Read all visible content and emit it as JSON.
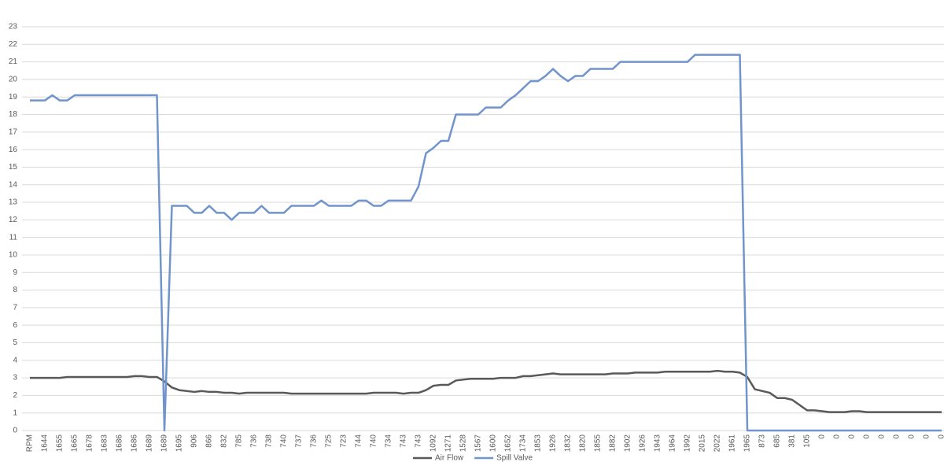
{
  "chart_data": {
    "type": "line",
    "categories": [
      "RPM",
      null,
      "1644",
      null,
      "1655",
      null,
      "1665",
      null,
      "1678",
      null,
      "1683",
      null,
      "1686",
      null,
      "1686",
      null,
      "1689",
      null,
      "1689",
      null,
      "1695",
      null,
      "906",
      null,
      "866",
      null,
      "832",
      null,
      "785",
      null,
      "736",
      null,
      "738",
      null,
      "740",
      null,
      "737",
      null,
      "736",
      null,
      "725",
      null,
      "723",
      null,
      "744",
      null,
      "740",
      null,
      "734",
      null,
      "743",
      null,
      "743",
      null,
      "1092",
      null,
      "1271",
      null,
      "1528",
      null,
      "1567",
      null,
      "1600",
      null,
      "1652",
      null,
      "1734",
      null,
      "1853",
      null,
      "1926",
      null,
      "1832",
      null,
      "1820",
      null,
      "1855",
      null,
      "1882",
      null,
      "1902",
      null,
      "1926",
      null,
      "1943",
      null,
      "1964",
      null,
      "1992",
      null,
      "2015",
      null,
      "2022",
      null,
      "1961",
      null,
      "1965",
      null,
      "873",
      null,
      "685",
      null,
      "381",
      null,
      "105",
      null,
      "0",
      null,
      "0",
      null,
      "0",
      null,
      "0",
      null,
      "0",
      null,
      "0",
      null,
      "0",
      null,
      "0",
      null,
      "0"
    ],
    "series": [
      {
        "name": "Air Flow",
        "color": "#595959",
        "values": [
          3.0,
          3.0,
          3.0,
          3.0,
          3.0,
          3.05,
          3.05,
          3.05,
          3.05,
          3.05,
          3.05,
          3.05,
          3.05,
          3.05,
          3.1,
          3.1,
          3.05,
          3.05,
          2.8,
          2.45,
          2.3,
          2.25,
          2.2,
          2.25,
          2.2,
          2.2,
          2.15,
          2.15,
          2.1,
          2.15,
          2.15,
          2.15,
          2.15,
          2.15,
          2.15,
          2.1,
          2.1,
          2.1,
          2.1,
          2.1,
          2.1,
          2.1,
          2.1,
          2.1,
          2.1,
          2.1,
          2.15,
          2.15,
          2.15,
          2.15,
          2.1,
          2.15,
          2.15,
          2.3,
          2.55,
          2.6,
          2.6,
          2.85,
          2.9,
          2.95,
          2.95,
          2.95,
          2.95,
          3.0,
          3.0,
          3.0,
          3.1,
          3.1,
          3.15,
          3.2,
          3.25,
          3.2,
          3.2,
          3.2,
          3.2,
          3.2,
          3.2,
          3.2,
          3.25,
          3.25,
          3.25,
          3.3,
          3.3,
          3.3,
          3.3,
          3.35,
          3.35,
          3.35,
          3.35,
          3.35,
          3.35,
          3.35,
          3.4,
          3.35,
          3.35,
          3.3,
          3.05,
          2.35,
          2.25,
          2.15,
          1.85,
          1.85,
          1.75,
          1.45,
          1.15,
          1.15,
          1.1,
          1.05,
          1.05,
          1.05,
          1.1,
          1.1,
          1.05,
          1.05,
          1.05,
          1.05,
          1.05,
          1.05,
          1.05,
          1.05,
          1.05,
          1.05,
          1.05
        ]
      },
      {
        "name": "Spill Valve",
        "color": "#7094cb",
        "values": [
          18.8,
          18.8,
          18.8,
          19.1,
          18.8,
          18.8,
          19.1,
          19.1,
          19.1,
          19.1,
          19.1,
          19.1,
          19.1,
          19.1,
          19.1,
          19.1,
          19.1,
          19.1,
          0,
          12.8,
          12.8,
          12.8,
          12.4,
          12.4,
          12.8,
          12.4,
          12.4,
          12.0,
          12.4,
          12.4,
          12.4,
          12.8,
          12.4,
          12.4,
          12.4,
          12.8,
          12.8,
          12.8,
          12.8,
          13.1,
          12.8,
          12.8,
          12.8,
          12.8,
          13.1,
          13.1,
          12.8,
          12.8,
          13.1,
          13.1,
          13.1,
          13.1,
          13.9,
          15.8,
          16.1,
          16.5,
          16.5,
          18.0,
          18.0,
          18.0,
          18.0,
          18.4,
          18.4,
          18.4,
          18.8,
          19.1,
          19.5,
          19.9,
          19.9,
          20.2,
          20.6,
          20.2,
          19.9,
          20.2,
          20.2,
          20.6,
          20.6,
          20.6,
          20.6,
          21.0,
          21.0,
          21.0,
          21.0,
          21.0,
          21.0,
          21.0,
          21.0,
          21.0,
          21.0,
          21.4,
          21.4,
          21.4,
          21.4,
          21.4,
          21.4,
          21.4,
          0,
          0,
          0,
          0,
          0,
          0,
          0,
          0,
          0,
          0,
          0,
          0,
          0,
          0,
          0,
          0,
          0,
          0,
          0,
          0,
          0,
          0,
          0,
          0,
          0,
          0,
          0
        ]
      }
    ],
    "ylim": [
      0,
      23
    ],
    "yticks": [
      0,
      1,
      2,
      3,
      4,
      5,
      6,
      7,
      8,
      9,
      10,
      11,
      12,
      13,
      14,
      15,
      16,
      17,
      18,
      19,
      20,
      21,
      22,
      23
    ],
    "grid": true,
    "legend": "bottom"
  }
}
